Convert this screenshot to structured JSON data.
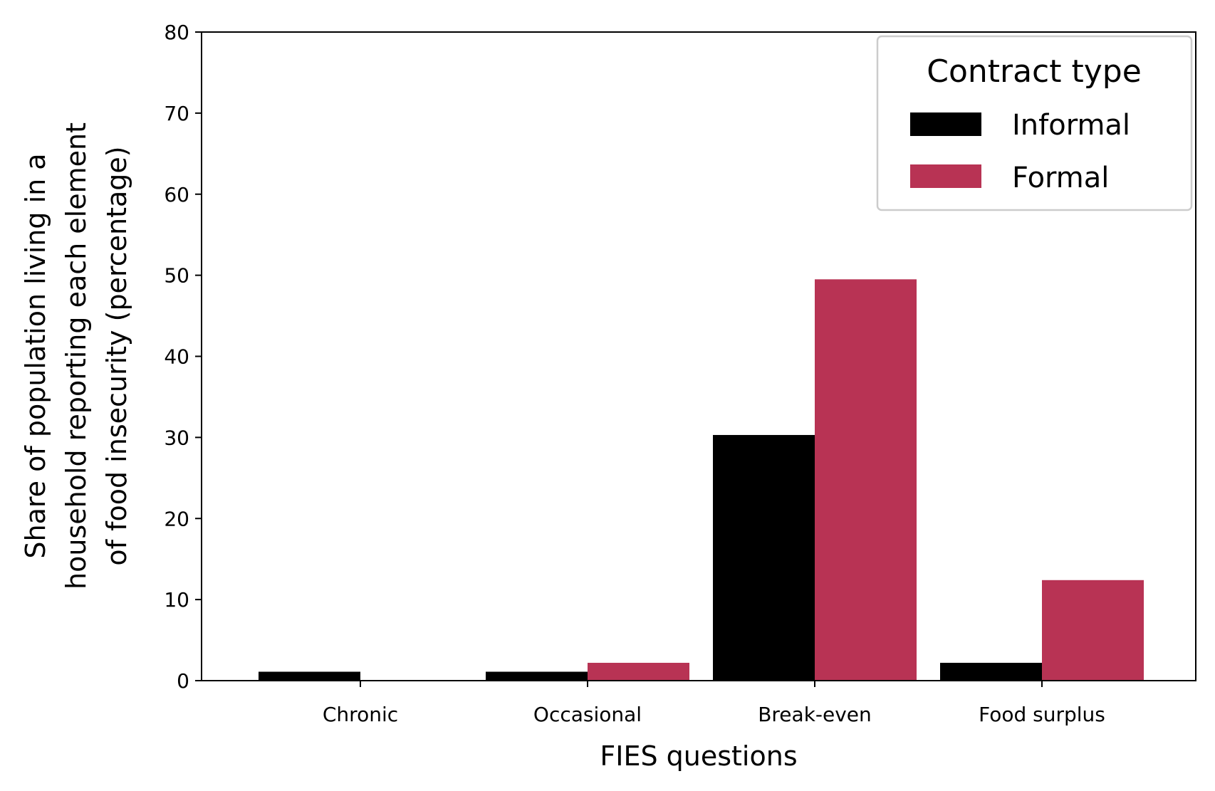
{
  "chart_data": {
    "type": "bar",
    "title": "",
    "xlabel": "FIES questions",
    "ylabel_lines": [
      "Share of population living in a",
      "household reporting each element",
      "of food insecurity (percentage)"
    ],
    "categories": [
      "Chronic",
      "Occasional",
      "Break-even",
      "Food surplus"
    ],
    "series": [
      {
        "name": "Informal",
        "color": "#000000",
        "values": [
          1.1,
          1.1,
          30.3,
          2.2
        ]
      },
      {
        "name": "Formal",
        "color": "#b83354",
        "values": [
          0,
          2.2,
          49.5,
          12.4
        ]
      }
    ],
    "ylim": [
      0,
      80
    ],
    "yticks": [
      0,
      10,
      20,
      30,
      40,
      50,
      60,
      70,
      80
    ],
    "grid": false,
    "legend": {
      "title": "Contract type",
      "position": "top-right"
    }
  }
}
